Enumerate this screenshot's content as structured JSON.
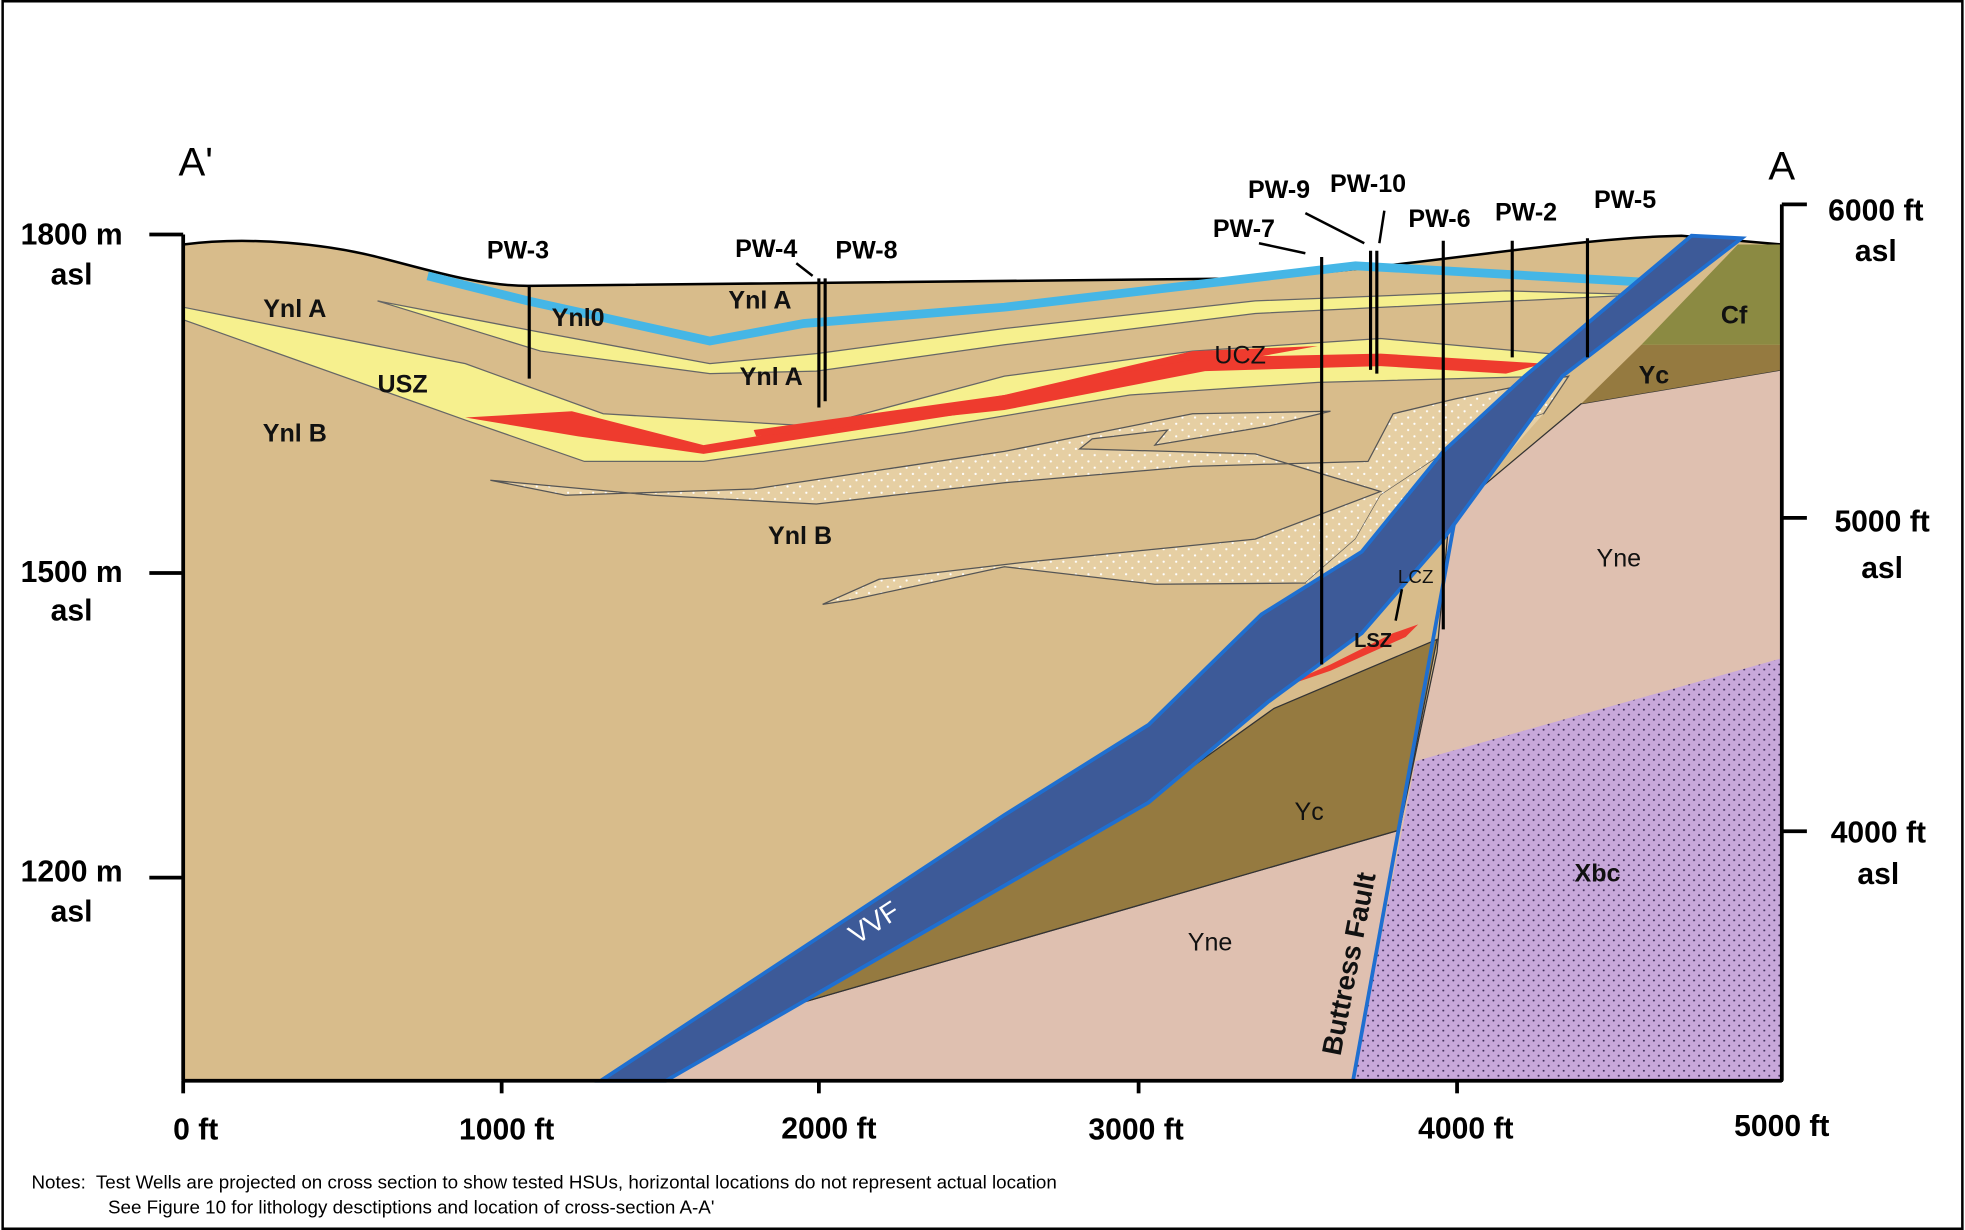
{
  "section_labels": {
    "left": "A'",
    "right": "A"
  },
  "left_axis": [
    [
      "1800 m",
      "asl"
    ],
    [
      "1500 m",
      "asl"
    ],
    [
      "1200 m",
      "asl"
    ]
  ],
  "right_axis": [
    [
      "6000 ft",
      "asl"
    ],
    [
      "5000 ft",
      "asl"
    ],
    [
      "4000 ft",
      "asl"
    ]
  ],
  "x_axis": [
    "0 ft",
    "1000 ft",
    "2000 ft",
    "3000 ft",
    "4000 ft",
    "5000 ft"
  ],
  "wells": [
    "PW-3",
    "PW-4",
    "PW-8",
    "PW-7",
    "PW-9",
    "PW-10",
    "PW-6",
    "PW-2",
    "PW-5"
  ],
  "units": [
    "Ynl A",
    "Ynl0",
    "Ynl A",
    "Ynl A",
    "USZ",
    "Ynl B",
    "Ynl B",
    "UCZ",
    "Cf",
    "Yc",
    "Yne",
    "LCZ",
    "LSZ",
    "Yc",
    "Xbc",
    "Yne"
  ],
  "structures": [
    "VVF",
    "Buttress Fault"
  ],
  "notes": [
    "Notes:  Test Wells are projected on cross section to show tested HSUs, horizontal locations do not represent actual location",
    "See Figure 10 for lithology desctiptions and location of cross-section A-A'"
  ]
}
